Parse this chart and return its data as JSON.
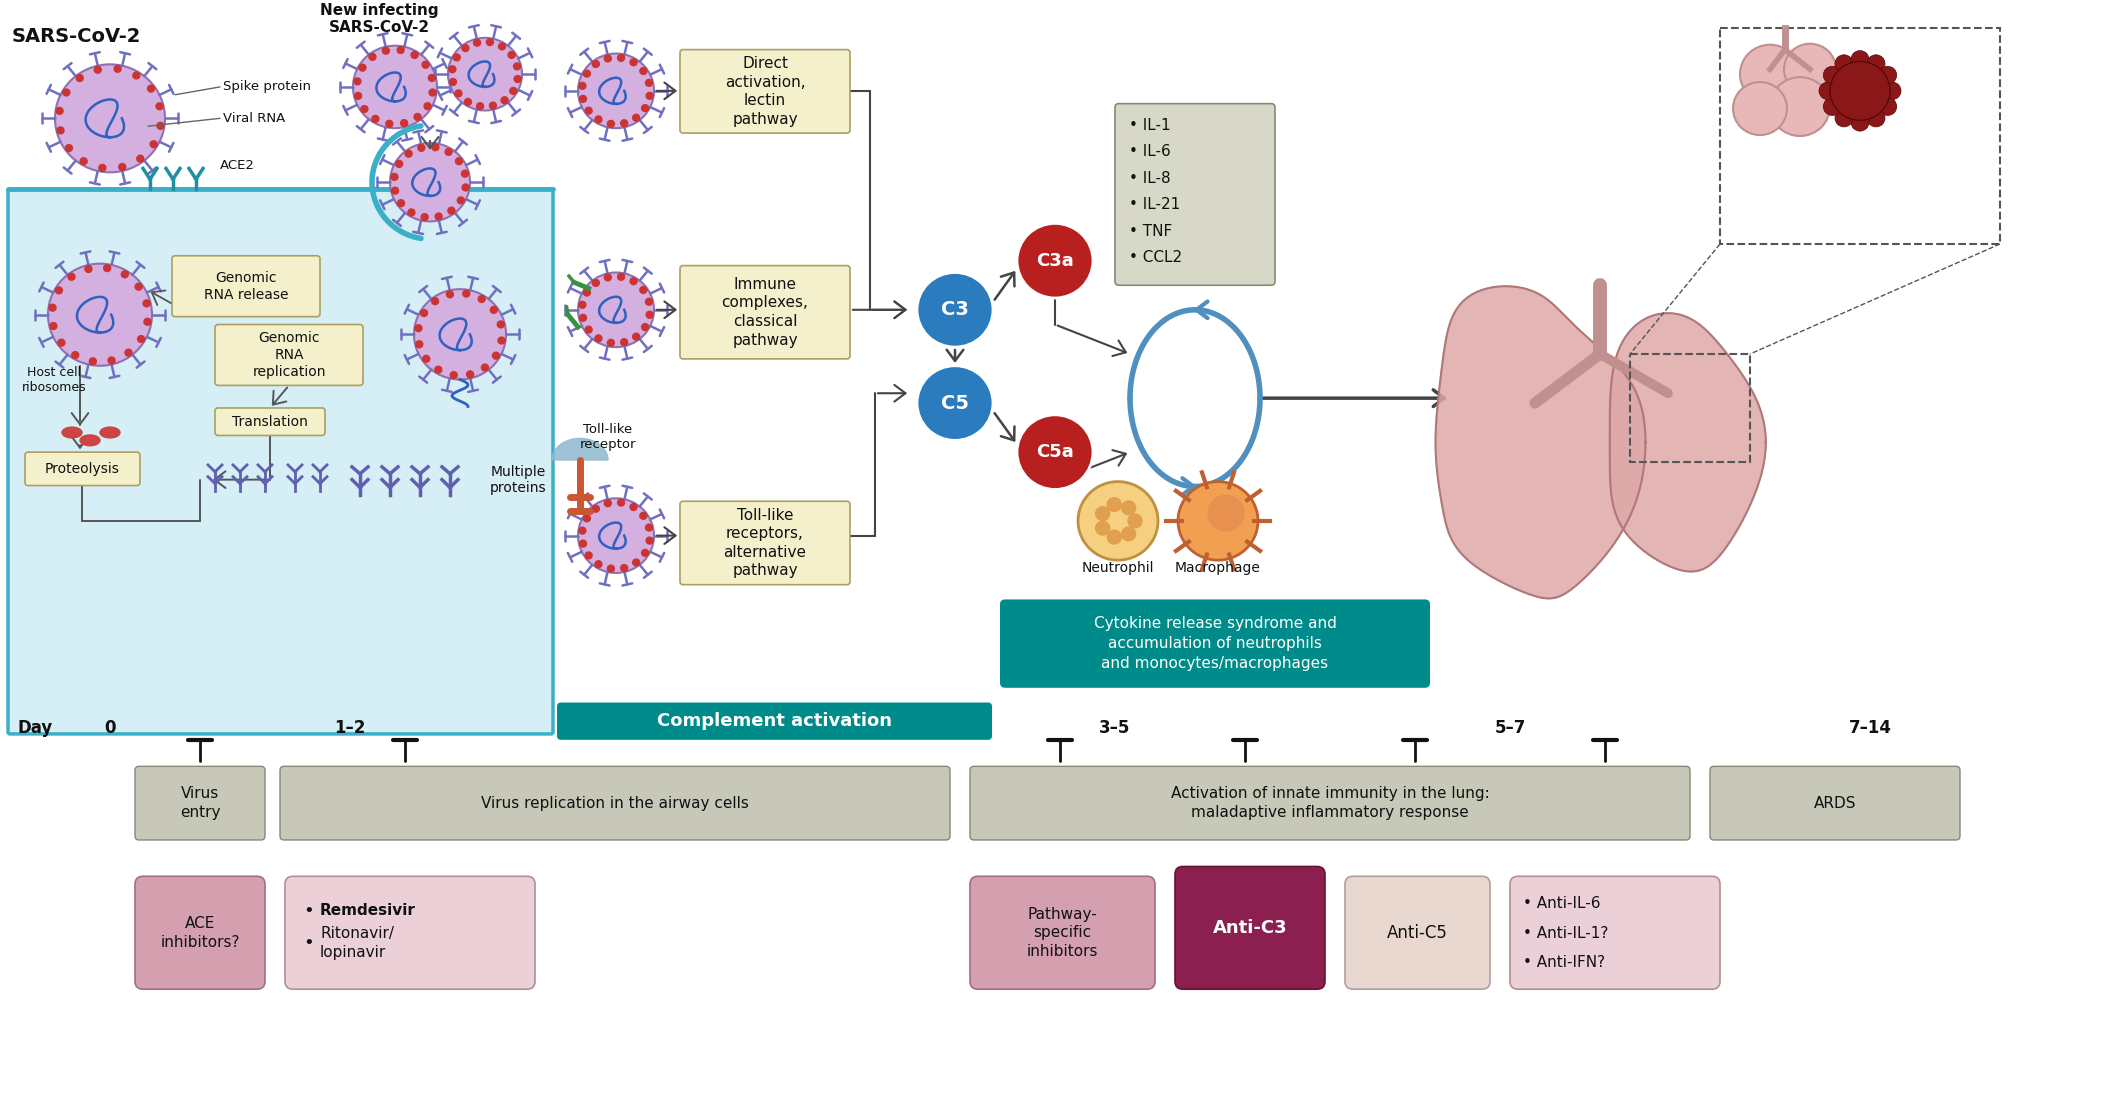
{
  "bg_color": "#ffffff",
  "cell_bg": "#d6eef5",
  "cell_border": "#3ab0c8",
  "box_cream": "#f5f0d0",
  "box_border": "#aaa060",
  "teal_bg": "#008b8b",
  "c3_color": "#2b7bbf",
  "c3a_color": "#b82020",
  "c5_color": "#2b7bbf",
  "c5a_color": "#b82020",
  "virus_body": "#d4b0e0",
  "virus_border": "#9070b0",
  "spike_color": "#7070c0",
  "rna_color": "#3060c0",
  "red_dot": "#cc3333",
  "arrow_color": "#444444",
  "timeline_bg": "#c0bfb0",
  "ace_color": "#2090a0",
  "pink_drug": "#c07090",
  "dark_pink_drug": "#8B2050",
  "light_drug_bg": "#d4a0b5",
  "anti_c5_bg": "#e8d8d0",
  "anti_il_bg": "#e8d0d8",
  "cytokine_bg": "#d8d8c8",
  "green_antibody": "#3a9040",
  "tlr_blue": "#90b8d0",
  "tlr_orange": "#cc5533",
  "neutrophil_body": "#f5d080",
  "neutrophil_dot": "#dd9944",
  "macrophage_body": "#f0a050",
  "lung_color": "#e0a8a8",
  "lung_border": "#b07070",
  "trachea_color": "#c08888",
  "alveoli_pink": "#e8b8b8",
  "alveoli_dark": "#7a1a1a",
  "cycle_arrow_color": "#5090c0",
  "sars_label": "SARS-CoV-2",
  "new_infecting_label": "New infecting\nSARS-CoV-2",
  "spike_protein_label": "Spike protein",
  "viral_rna_label": "Viral RNA",
  "ace2_label": "ACE2",
  "host_cell_label": "Host cell\nribosomes",
  "genomic_rna_release_label": "Genomic\nRNA release",
  "genomic_rna_replication_label": "Genomic\nRNA\nreplication",
  "translation_label": "Translation",
  "proteolysis_label": "Proteolysis",
  "multiple_proteins_label": "Multiple\nproteins",
  "toll_like_receptor_label": "Toll-like\nreceptor",
  "neutrophil_label": "Neutrophil",
  "macrophage_label": "Macrophage",
  "complement_label": "Complement activation",
  "cytokine_label": "Cytokine release syndrome and\naccumulation of neutrophils\nand monocytes/macrophages",
  "cytokine_list": [
    "IL-1",
    "IL-6",
    "IL-8",
    "IL-21",
    "TNF",
    "CCL2"
  ],
  "direct_pathway": "Direct\nactivation,\nlectin\npathway",
  "immune_pathway": "Immune\ncomplexes,\nclassical\npathway",
  "toll_pathway": "Toll-like\nreceptors,\nalternative\npathway",
  "day_labels": [
    [
      "Day",
      35
    ],
    [
      "0",
      110
    ],
    [
      "1–2",
      350
    ],
    [
      "3–5",
      1115
    ],
    [
      "5–7",
      1510
    ],
    [
      "7–14",
      1870
    ]
  ],
  "phase_boxes": [
    [
      135,
      760,
      130,
      75,
      "Virus\nentry"
    ],
    [
      280,
      760,
      670,
      75,
      "Virus replication in the airway cells"
    ],
    [
      970,
      760,
      720,
      75,
      "Activation of innate immunity in the lung:\nmaladaptive inflammatory response"
    ],
    [
      1710,
      760,
      250,
      75,
      "ARDS"
    ]
  ],
  "drug_boxes": [
    [
      135,
      880,
      130,
      120,
      "ACE\ninhibitors?",
      "light"
    ],
    [
      280,
      880,
      250,
      120,
      "",
      "white_rem"
    ],
    [
      970,
      880,
      180,
      120,
      "Pathway-\nspecific\ninhibitors",
      "light"
    ],
    [
      1168,
      870,
      155,
      130,
      "Anti-C3",
      "dark_pink"
    ],
    [
      1338,
      880,
      145,
      120,
      "Anti-C5",
      "white"
    ],
    [
      1500,
      880,
      210,
      120,
      "",
      "white_il"
    ]
  ],
  "tbar_positions": [
    200,
    405,
    1060,
    1245,
    1415,
    1605
  ]
}
